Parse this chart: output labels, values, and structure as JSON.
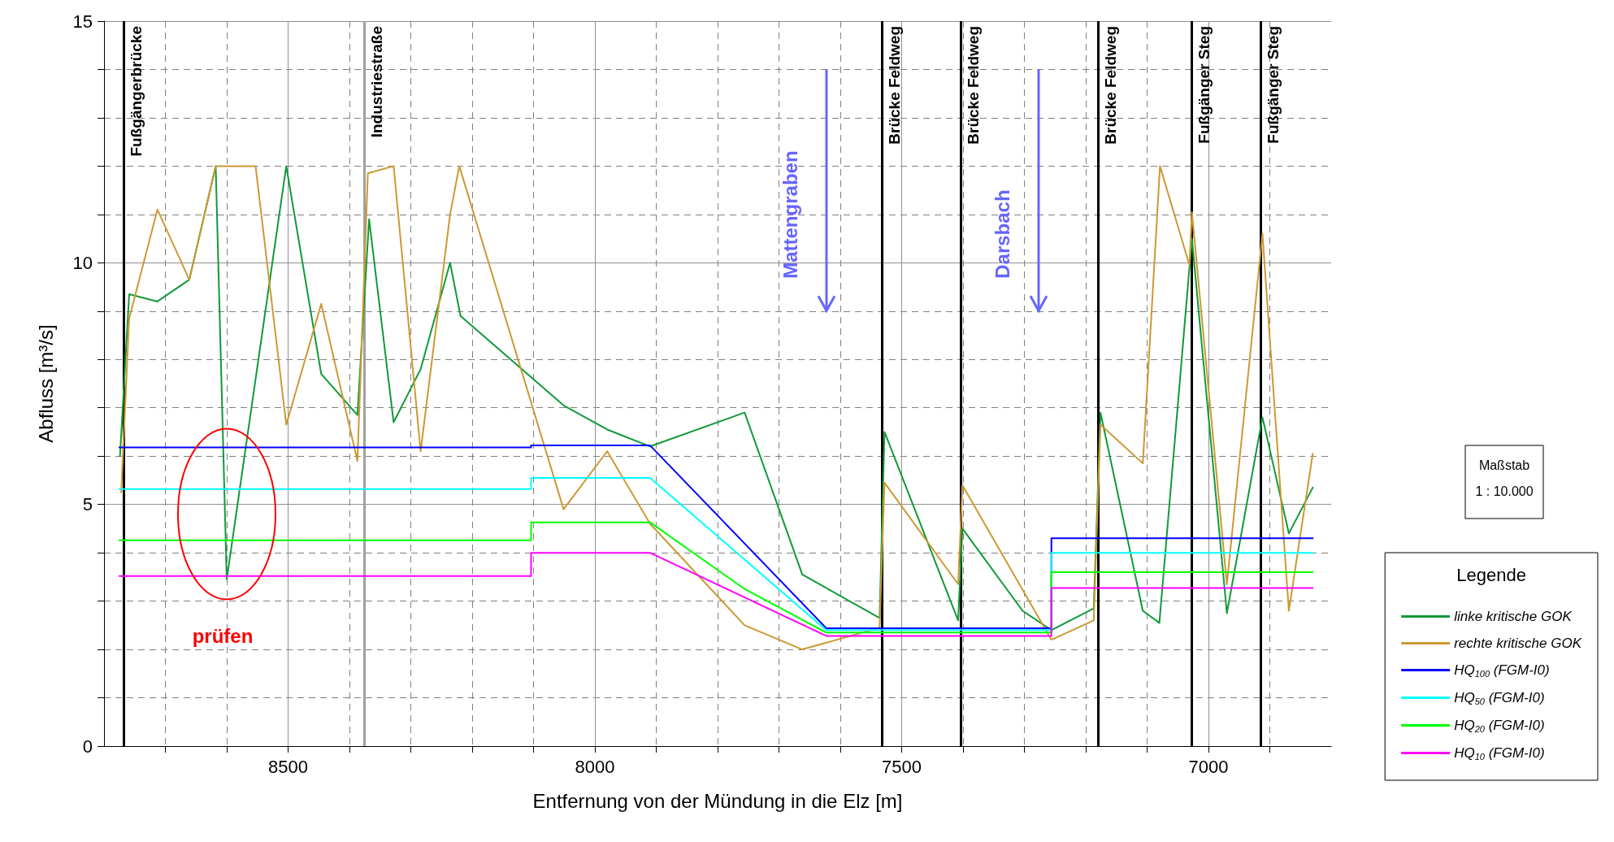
{
  "chart_data": {
    "type": "line",
    "xlabel": "Entfernung von der Mündung in die Elz [m]",
    "ylabel": "Abfluss [m³/s]",
    "legend_title": "Legende",
    "xlim": [
      8800,
      6800
    ],
    "ylim": [
      0,
      15
    ],
    "xticks": [
      {
        "value": 8700,
        "label": null
      },
      {
        "value": 8600,
        "label": null
      },
      8500,
      {
        "value": 8400,
        "label": null
      },
      {
        "value": 8300,
        "label": null
      },
      {
        "value": 8200,
        "label": null
      },
      {
        "value": 8100,
        "label": null
      },
      8000,
      {
        "value": 7900,
        "label": null
      },
      {
        "value": 7800,
        "label": null
      },
      {
        "value": 7700,
        "label": null
      },
      {
        "value": 7600,
        "label": null
      },
      7500,
      {
        "value": 7400,
        "label": null
      },
      {
        "value": 7300,
        "label": null
      },
      {
        "value": 7200,
        "label": null
      },
      {
        "value": 7100,
        "label": null
      },
      7000,
      {
        "value": 6900,
        "label": null
      }
    ],
    "yticks": [
      0,
      {
        "value": 1,
        "label": null
      },
      {
        "value": 2,
        "label": null
      },
      {
        "value": 3,
        "label": null
      },
      {
        "value": 4,
        "label": null
      },
      5,
      {
        "value": 6,
        "label": null
      },
      {
        "value": 7,
        "label": null
      },
      {
        "value": 8,
        "label": null
      },
      {
        "value": 9,
        "label": null
      },
      10,
      {
        "value": 11,
        "label": null
      },
      {
        "value": 12,
        "label": null
      },
      {
        "value": 13,
        "label": null
      },
      {
        "value": 14,
        "label": null
      },
      15
    ],
    "grid": true,
    "legend": "right",
    "marker": "none",
    "line_style": "solid",
    "series": [
      {
        "name": "linke kritische GOK",
        "color": "#109a38",
        "x": [
          8774,
          8759,
          8713,
          8661,
          8618,
          8600,
          8503,
          8446,
          8387,
          8368,
          8328,
          8284,
          8236,
          8219,
          8051,
          7980,
          7910,
          7756,
          7662,
          7536,
          7528,
          7408,
          7401,
          7303,
          7256,
          7187,
          7176,
          7107,
          7080,
          7027,
          6970,
          6912,
          6869,
          6830
        ],
        "values": [
          6.0,
          9.35,
          9.2,
          9.65,
          12.0,
          3.45,
          12.0,
          7.7,
          6.85,
          10.9,
          6.7,
          7.8,
          10.0,
          8.9,
          7.05,
          6.55,
          6.2,
          6.9,
          3.55,
          2.65,
          6.5,
          2.6,
          4.5,
          2.8,
          2.4,
          2.85,
          6.9,
          2.8,
          2.55,
          10.5,
          2.75,
          6.8,
          4.4,
          5.35
        ]
      },
      {
        "name": "rechte kritische GOK",
        "color": "#cc9933",
        "x": [
          8772,
          8759,
          8713,
          8661,
          8618,
          8553,
          8503,
          8446,
          8387,
          8370,
          8328,
          8284,
          8236,
          8221,
          8051,
          7980,
          7910,
          7756,
          7662,
          7536,
          7528,
          7408,
          7401,
          7256,
          7187,
          7176,
          7107,
          7079,
          7031,
          7027,
          6970,
          6912,
          6869,
          6830
        ],
        "values": [
          5.25,
          8.85,
          11.1,
          9.65,
          12.0,
          12.0,
          6.65,
          9.15,
          5.9,
          11.85,
          12.0,
          6.1,
          11.0,
          12.0,
          4.9,
          6.1,
          4.6,
          2.5,
          2.0,
          2.45,
          5.45,
          3.35,
          5.4,
          2.2,
          2.6,
          6.65,
          5.85,
          12.0,
          9.95,
          11.05,
          3.35,
          10.6,
          2.8,
          6.05
        ]
      },
      {
        "name": "HQ$_{100}$ (FGM-I0)",
        "color": "#0000ff",
        "x": [
          8775,
          8104,
          8104,
          7910,
          7623,
          7256,
          7256,
          6830
        ],
        "values": [
          6.18,
          6.18,
          6.22,
          6.22,
          2.44,
          2.44,
          4.3,
          4.3
        ]
      },
      {
        "name": "HQ$_{50}$ (FGM-I0)",
        "color": "#00ffff",
        "x": [
          8775,
          8104,
          8104,
          7910,
          7623,
          7256,
          7256,
          6830
        ],
        "values": [
          5.32,
          5.32,
          5.55,
          5.55,
          2.4,
          2.4,
          4.0,
          4.0
        ]
      },
      {
        "name": "HQ$_{20}$ (FGM-I0)",
        "color": "#00ff00",
        "x": [
          8775,
          8104,
          8104,
          7910,
          7756,
          7623,
          7256,
          7256,
          6830
        ],
        "values": [
          4.26,
          4.26,
          4.63,
          4.63,
          3.25,
          2.35,
          2.35,
          3.6,
          3.6
        ]
      },
      {
        "name": "HQ$_{10}$ (FGM-I0)",
        "color": "#ff00ff",
        "x": [
          8775,
          8104,
          8104,
          7910,
          7623,
          7256,
          7256,
          6830
        ],
        "values": [
          3.52,
          3.52,
          4.0,
          4.0,
          2.28,
          2.28,
          3.27,
          3.27
        ]
      }
    ],
    "ref_lines": [
      {
        "axis": "x",
        "value": 8768,
        "label": "Fußgängerbrücke",
        "color": "#000000"
      },
      {
        "axis": "x",
        "value": 8376,
        "label": "Industriestraße",
        "color": "#a0a0a0"
      },
      {
        "axis": "x",
        "value": 7532,
        "label": "Brücke Feldweg",
        "color": "#000000"
      },
      {
        "axis": "x",
        "value": 7404,
        "label": "Brücke Feldweg",
        "color": "#000000"
      },
      {
        "axis": "x",
        "value": 7180,
        "label": "Brücke Feldweg",
        "color": "#000000"
      },
      {
        "axis": "x",
        "value": 7028,
        "label": "Fußgänger Steg",
        "color": "#000000"
      },
      {
        "axis": "x",
        "value": 6915,
        "label": "Fußgänger Steg",
        "color": "#000000"
      }
    ],
    "annotations": [
      "Mattengraben",
      "Darsbach",
      "prüfen",
      "Maßstab",
      "1 : 10.000"
    ]
  }
}
